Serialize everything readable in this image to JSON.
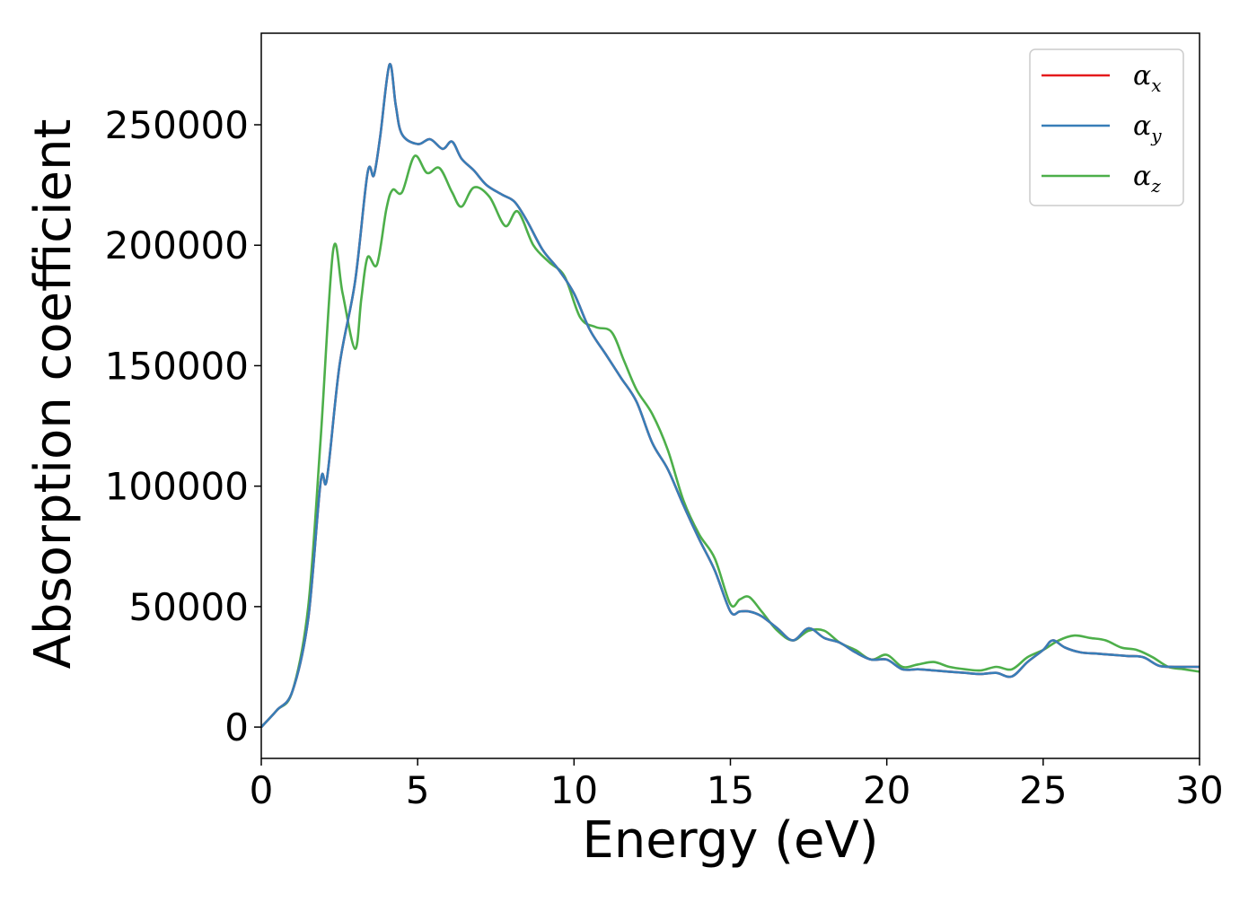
{
  "chart_data": {
    "type": "line",
    "title": "",
    "xlabel": "Energy (eV)",
    "ylabel": "Absorption coefficient",
    "xlim": [
      0,
      30
    ],
    "ylim": [
      -13000,
      288000
    ],
    "xticks": [
      0,
      5,
      10,
      15,
      20,
      25,
      30
    ],
    "yticks": [
      0,
      50000,
      100000,
      150000,
      200000,
      250000
    ],
    "grid": false,
    "legend_position": "top-right",
    "series": [
      {
        "name": "α_x",
        "legend_symbol": "α",
        "legend_sub": "x",
        "color": "#e41a1c",
        "x": [
          0,
          0.5,
          1,
          1.5,
          1.9,
          2.1,
          2.5,
          3,
          3.4,
          3.6,
          3.8,
          4.1,
          4.3,
          4.5,
          5,
          5.4,
          5.8,
          6.1,
          6.4,
          6.8,
          7.2,
          7.7,
          8.1,
          8.5,
          9,
          9.5,
          10,
          10.5,
          11,
          11.5,
          12,
          12.5,
          13,
          13.5,
          14,
          14.5,
          15,
          15.3,
          15.6,
          16,
          16.5,
          17,
          17.5,
          18,
          18.5,
          19,
          19.5,
          20,
          20.5,
          21,
          21.5,
          22,
          22.5,
          23,
          23.5,
          24,
          24.5,
          25,
          25.3,
          25.7,
          26.2,
          26.7,
          27.2,
          27.7,
          28.2,
          28.7,
          29.2,
          29.6,
          30
        ],
        "y": [
          0,
          7000,
          15000,
          45000,
          102000,
          103000,
          150000,
          185000,
          230000,
          229000,
          245000,
          275000,
          258000,
          246000,
          242000,
          244000,
          240000,
          243000,
          236000,
          231000,
          225000,
          221000,
          218000,
          210000,
          198000,
          190000,
          180000,
          165000,
          155000,
          145000,
          135000,
          118000,
          107000,
          92000,
          78000,
          65000,
          48000,
          48000,
          48000,
          46000,
          41000,
          36000,
          41000,
          37000,
          35000,
          31000,
          28000,
          28000,
          24000,
          24000,
          23500,
          23000,
          22500,
          22000,
          22500,
          21000,
          27000,
          32000,
          36000,
          33000,
          31000,
          30500,
          30000,
          29500,
          29000,
          25500,
          25000,
          25000,
          25000
        ]
      },
      {
        "name": "α_y",
        "legend_symbol": "α",
        "legend_sub": "y",
        "color": "#377eb8",
        "x": [
          0,
          0.5,
          1,
          1.5,
          1.9,
          2.1,
          2.5,
          3,
          3.4,
          3.6,
          3.8,
          4.1,
          4.3,
          4.5,
          5,
          5.4,
          5.8,
          6.1,
          6.4,
          6.8,
          7.2,
          7.7,
          8.1,
          8.5,
          9,
          9.5,
          10,
          10.5,
          11,
          11.5,
          12,
          12.5,
          13,
          13.5,
          14,
          14.5,
          15,
          15.3,
          15.6,
          16,
          16.5,
          17,
          17.5,
          18,
          18.5,
          19,
          19.5,
          20,
          20.5,
          21,
          21.5,
          22,
          22.5,
          23,
          23.5,
          24,
          24.5,
          25,
          25.3,
          25.7,
          26.2,
          26.7,
          27.2,
          27.7,
          28.2,
          28.7,
          29.2,
          29.6,
          30
        ],
        "y": [
          0,
          7000,
          15000,
          45000,
          102000,
          103000,
          150000,
          185000,
          230000,
          229000,
          245000,
          275000,
          258000,
          246000,
          242000,
          244000,
          240000,
          243000,
          236000,
          231000,
          225000,
          221000,
          218000,
          210000,
          198000,
          190000,
          180000,
          165000,
          155000,
          145000,
          135000,
          118000,
          107000,
          92000,
          78000,
          65000,
          48000,
          48000,
          48000,
          46000,
          41000,
          36000,
          41000,
          37000,
          35000,
          31000,
          28000,
          28000,
          24000,
          24000,
          23500,
          23000,
          22500,
          22000,
          22500,
          21000,
          27000,
          32000,
          36000,
          33000,
          31000,
          30500,
          30000,
          29500,
          29000,
          25500,
          25000,
          25000,
          25000
        ]
      },
      {
        "name": "α_z",
        "legend_symbol": "α",
        "legend_sub": "z",
        "color": "#4daf4a",
        "x": [
          0,
          0.5,
          1,
          1.5,
          1.9,
          2.3,
          2.6,
          3,
          3.2,
          3.4,
          3.7,
          4,
          4.2,
          4.5,
          4.9,
          5.3,
          5.7,
          6.1,
          6.4,
          6.8,
          7.3,
          7.8,
          8.2,
          8.7,
          9.2,
          9.7,
          10.2,
          10.7,
          11.2,
          11.6,
          12,
          12.5,
          13,
          13.5,
          14,
          14.5,
          15,
          15.3,
          15.6,
          16,
          16.5,
          17,
          17.5,
          18,
          18.5,
          19,
          19.5,
          20,
          20.5,
          21,
          21.5,
          22,
          22.5,
          23,
          23.5,
          24,
          24.5,
          25,
          25.5,
          26,
          26.5,
          27,
          27.5,
          28,
          28.5,
          29,
          29.5,
          30
        ],
        "y": [
          0,
          7000,
          15000,
          50000,
          120000,
          198000,
          180000,
          157000,
          178000,
          195000,
          192000,
          215000,
          223000,
          222000,
          237000,
          230000,
          232000,
          222000,
          216000,
          224000,
          220000,
          208000,
          214000,
          200000,
          193000,
          187000,
          170000,
          166000,
          164000,
          152000,
          140000,
          130000,
          115000,
          94000,
          80000,
          70000,
          51000,
          53000,
          54000,
          48000,
          40000,
          36000,
          40000,
          40000,
          35000,
          32000,
          28000,
          30000,
          25000,
          26000,
          27000,
          25000,
          24000,
          23500,
          25000,
          24000,
          29000,
          32000,
          36000,
          38000,
          37000,
          36000,
          33000,
          32000,
          29000,
          25000,
          24000,
          23000
        ]
      }
    ]
  }
}
